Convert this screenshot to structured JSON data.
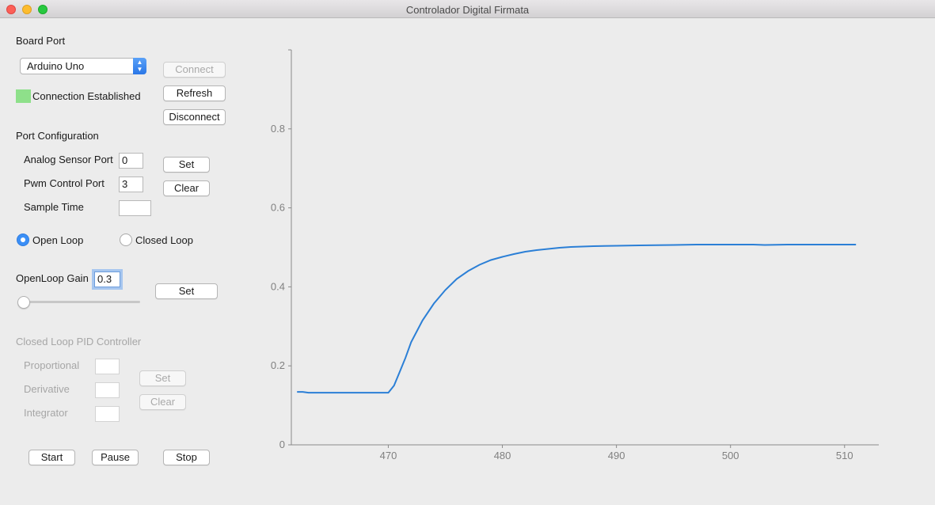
{
  "window": {
    "title": "Controlador Digital Firmata"
  },
  "board": {
    "section_label": "Board Port",
    "port_selected": "Arduino Uno",
    "connect_label": "Connect",
    "refresh_label": "Refresh",
    "disconnect_label": "Disconnect",
    "status_text": "Connection Established",
    "status_color": "#8ee08a"
  },
  "port_config": {
    "section_label": "Port Configuration",
    "analog_label": "Analog Sensor Port",
    "analog_value": "0",
    "pwm_label": "Pwm Control Port",
    "pwm_value": "3",
    "sample_label": "Sample Time",
    "sample_value": "",
    "set_label": "Set",
    "clear_label": "Clear"
  },
  "mode": {
    "open_loop_label": "Open Loop",
    "closed_loop_label": "Closed Loop",
    "selected": "Open Loop"
  },
  "open_loop": {
    "gain_label": "OpenLoop Gain",
    "gain_value": "0.3",
    "set_label": "Set",
    "slider_value": 0
  },
  "pid": {
    "section_label": "Closed Loop PID Controller",
    "proportional_label": "Proportional",
    "derivative_label": "Derivative",
    "integrator_label": "Integrator",
    "proportional_value": "",
    "derivative_value": "",
    "integrator_value": "",
    "set_label": "Set",
    "clear_label": "Clear"
  },
  "controls": {
    "start_label": "Start",
    "pause_label": "Pause",
    "stop_label": "Stop"
  },
  "chart_data": {
    "type": "line",
    "xlim": [
      461.5,
      513
    ],
    "ylim": [
      0,
      1
    ],
    "xticks": [
      "470",
      "480",
      "490",
      "500",
      "510"
    ],
    "yticks": [
      "0",
      "0.2",
      "0.4",
      "0.6",
      "0.8"
    ],
    "x": [
      462,
      462.5,
      463,
      465,
      467,
      469,
      469.8,
      470,
      470.5,
      471,
      471.5,
      472,
      473,
      474,
      475,
      476,
      477,
      478,
      479,
      480,
      481,
      482,
      483,
      484,
      485,
      486,
      487,
      488,
      490,
      492,
      495,
      497,
      500,
      502,
      503,
      505,
      508,
      511
    ],
    "series": [
      {
        "color": "#2b7fd6",
        "values": [
          0.134,
          0.134,
          0.132,
          0.132,
          0.132,
          0.132,
          0.132,
          0.132,
          0.15,
          0.185,
          0.22,
          0.26,
          0.315,
          0.358,
          0.392,
          0.42,
          0.44,
          0.456,
          0.468,
          0.476,
          0.483,
          0.489,
          0.493,
          0.496,
          0.499,
          0.501,
          0.502,
          0.503,
          0.504,
          0.505,
          0.506,
          0.507,
          0.507,
          0.507,
          0.506,
          0.507,
          0.507,
          0.507
        ]
      }
    ],
    "grid": false
  }
}
